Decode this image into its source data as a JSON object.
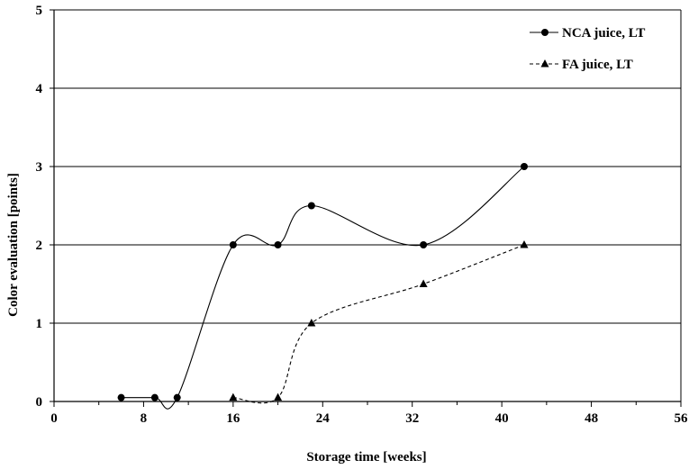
{
  "chart_data": {
    "type": "line",
    "xlabel": "Storage time [weeks]",
    "ylabel": "Color evaluation [points]",
    "xlim": [
      0,
      56
    ],
    "ylim": [
      0,
      5
    ],
    "xticks": [
      0,
      8,
      16,
      24,
      32,
      40,
      48,
      56
    ],
    "yticks": [
      0,
      1,
      2,
      3,
      4,
      5
    ],
    "grid": "horizontal",
    "legend_position": "top-right",
    "series": [
      {
        "name": "NCA juice, LT",
        "marker": "circle",
        "line_style": "solid",
        "smooth": true,
        "x": [
          6,
          9,
          11,
          16,
          20,
          23,
          33,
          42
        ],
        "y": [
          0.05,
          0.05,
          0.05,
          2,
          2,
          2.5,
          2,
          3
        ]
      },
      {
        "name": "FA juice, LT",
        "marker": "triangle",
        "line_style": "dashed",
        "smooth": true,
        "x": [
          16,
          20,
          23,
          33,
          42
        ],
        "y": [
          0.05,
          0.05,
          1,
          1.5,
          2
        ]
      }
    ],
    "colors": {
      "line": "#000000",
      "grid": "#000000",
      "background": "#ffffff"
    }
  }
}
